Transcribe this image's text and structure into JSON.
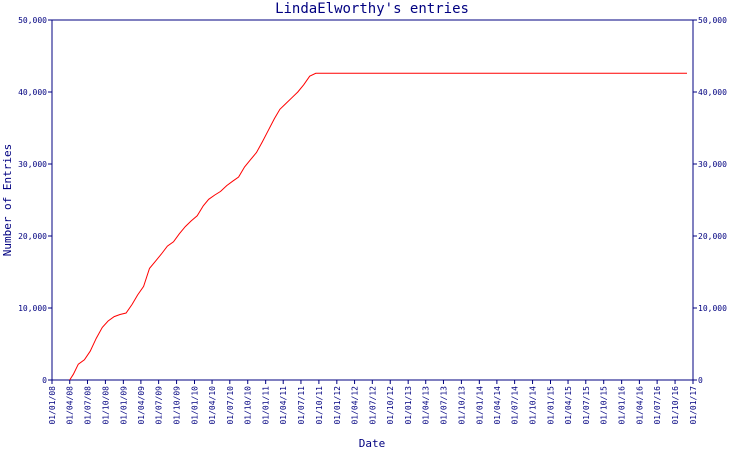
{
  "chart_data": {
    "type": "line",
    "title": "LindaElworthy's entries",
    "xlabel": "Date",
    "ylabel": "Number of Entries",
    "ylim": [
      0,
      50000
    ],
    "yticks": [
      0,
      10000,
      20000,
      30000,
      40000,
      50000
    ],
    "ytick_labels": [
      "0",
      "10,000",
      "20,000",
      "30,000",
      "40,000",
      "50,000"
    ],
    "xlim": [
      "2008-01-01",
      "2017-01-01"
    ],
    "xtick_labels": [
      "01/01/08",
      "01/04/08",
      "01/07/08",
      "01/10/08",
      "01/01/09",
      "01/04/09",
      "01/07/09",
      "01/10/09",
      "01/01/10",
      "01/04/10",
      "01/07/10",
      "01/10/10",
      "01/01/11",
      "01/04/11",
      "01/07/11",
      "01/10/11",
      "01/01/12",
      "01/04/12",
      "01/07/12",
      "01/10/12",
      "01/01/13",
      "01/04/13",
      "01/07/13",
      "01/10/13",
      "01/01/14",
      "01/04/14",
      "01/07/14",
      "01/10/14",
      "01/01/15",
      "01/04/15",
      "01/07/15",
      "01/10/15",
      "01/01/16",
      "01/04/16",
      "01/07/16",
      "01/10/16",
      "01/01/17"
    ],
    "grid": false,
    "colors": {
      "axis": "#000080",
      "series": "#ff0000"
    },
    "series": [
      {
        "x": [
          "2008-04-01",
          "2008-04-20",
          "2008-05-15",
          "2008-06-15",
          "2008-07-15",
          "2008-08-15",
          "2008-09-15",
          "2008-10-15",
          "2008-11-15",
          "2008-12-15",
          "2009-01-15",
          "2009-02-15",
          "2009-03-15",
          "2009-04-15",
          "2009-05-15",
          "2009-06-15",
          "2009-07-15",
          "2009-08-15",
          "2009-09-15",
          "2009-10-15",
          "2009-11-15",
          "2009-12-15",
          "2010-01-15",
          "2010-02-15",
          "2010-03-15",
          "2010-04-15",
          "2010-05-15",
          "2010-06-15",
          "2010-07-15",
          "2010-08-15",
          "2010-09-15",
          "2010-10-15",
          "2010-11-15",
          "2010-12-15",
          "2011-01-15",
          "2011-02-15",
          "2011-03-15",
          "2011-04-15",
          "2011-05-15",
          "2011-06-15",
          "2011-07-15",
          "2011-08-15",
          "2011-09-15",
          "2011-10-15",
          "2011-11-15",
          "2011-12-15",
          "2012-01-15",
          "2012-02-15",
          "2012-03-15",
          "2012-04-01",
          "2012-06-01",
          "2013-01-01",
          "2014-01-01",
          "2015-01-01",
          "2016-01-01",
          "2016-12-01"
        ],
        "values": [
          0,
          800,
          2200,
          2800,
          4000,
          5800,
          7300,
          8200,
          8800,
          9100,
          9300,
          10500,
          11800,
          13000,
          15500,
          16500,
          17500,
          18600,
          19200,
          20300,
          21300,
          22100,
          22800,
          24200,
          25100,
          25700,
          26200,
          27000,
          27600,
          28200,
          29600,
          30600,
          31600,
          33100,
          34700,
          36300,
          37600,
          38400,
          39200,
          40000,
          41000,
          42200,
          42600,
          42600,
          42600,
          42600,
          42600,
          42600,
          42600,
          42600,
          42600,
          42600,
          42600,
          42600,
          42600,
          42600
        ]
      }
    ]
  }
}
